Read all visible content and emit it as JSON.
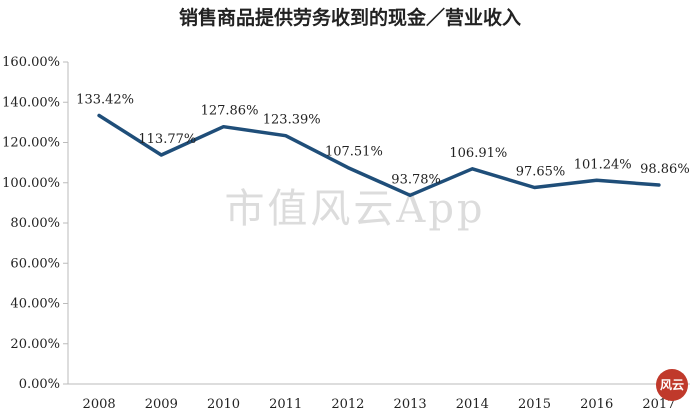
{
  "chart_data": {
    "type": "line",
    "title": "销售商品提供劳务收到的现金／营业收入",
    "xlabel": "",
    "ylabel": "",
    "categories": [
      "2008",
      "2009",
      "2010",
      "2011",
      "2012",
      "2013",
      "2014",
      "2015",
      "2016",
      "2017"
    ],
    "series": [
      {
        "values": [
          133.42,
          113.77,
          127.86,
          123.39,
          107.51,
          93.78,
          106.91,
          97.65,
          101.24,
          98.86
        ],
        "labels": [
          "133.42%",
          "113.77%",
          "127.86%",
          "123.39%",
          "107.51%",
          "93.78%",
          "106.91%",
          "97.65%",
          "101.24%",
          "98.86%"
        ],
        "color": "#1f4e79"
      }
    ],
    "ylim": [
      0,
      160
    ],
    "yticks": [
      "0.00%",
      "20.00%",
      "40.00%",
      "60.00%",
      "80.00%",
      "100.00%",
      "120.00%",
      "140.00%",
      "160.00%"
    ],
    "grid": false,
    "legend": "none"
  },
  "watermark": {
    "text": "市值风云App"
  },
  "stamp": {
    "text": "风云",
    "color": "#c0392b"
  }
}
